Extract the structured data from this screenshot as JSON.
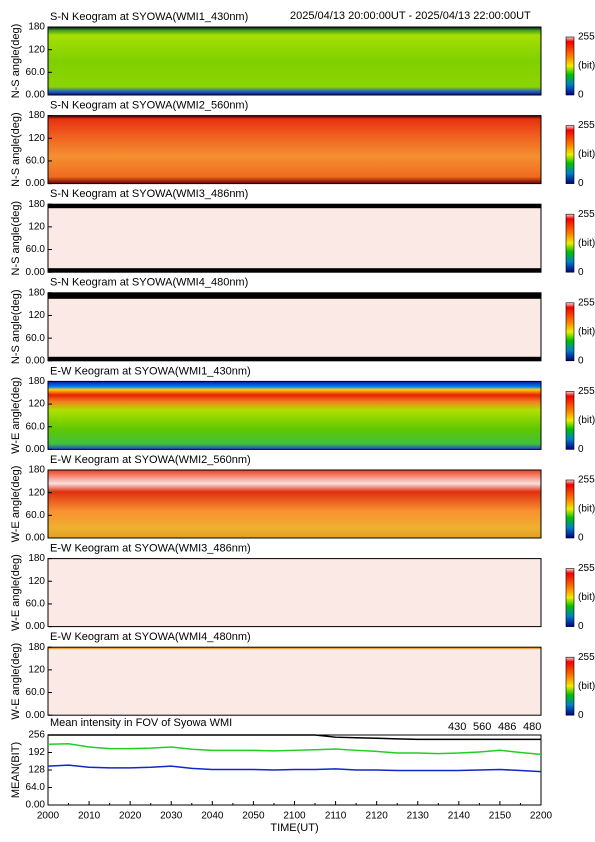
{
  "header": {
    "time_range": "2025/04/13 20:00:00UT - 2025/04/13 22:00:00UT"
  },
  "keograms": [
    {
      "title": "S-N Keogram at SYOWA(WMI1_430nm)",
      "ylabel": "N-S angle(deg)",
      "ylim": [
        0,
        180
      ],
      "yticks": [
        {
          "value": 0,
          "label": "0.00"
        },
        {
          "value": 60,
          "label": "60.0"
        },
        120,
        180
      ],
      "colorbar": [
        "255",
        "(bit)",
        "0"
      ]
    },
    {
      "title": "S-N Keogram at SYOWA(WMI2_560nm)",
      "ylabel": "N-S angle(deg)",
      "ylim": [
        0,
        180
      ],
      "yticks": [
        {
          "value": 0,
          "label": "0.00"
        },
        {
          "value": 60,
          "label": "60.0"
        },
        120,
        180
      ],
      "colorbar": [
        "255",
        "(bit)",
        "0"
      ]
    },
    {
      "title": "S-N Keogram at SYOWA(WMI3_486nm)",
      "ylabel": "N-S angle(deg)",
      "ylim": [
        0,
        180
      ],
      "yticks": [
        {
          "value": 0,
          "label": "0.00"
        },
        {
          "value": 60,
          "label": "60.0"
        },
        120,
        180
      ],
      "colorbar": [
        "255",
        "(bit)",
        "0"
      ]
    },
    {
      "title": "S-N Keogram at SYOWA(WMI4_480nm)",
      "ylabel": "N-S angle(deg)",
      "ylim": [
        0,
        180
      ],
      "yticks": [
        {
          "value": 0,
          "label": "0.00"
        },
        {
          "value": 60,
          "label": "60.0"
        },
        120,
        180
      ],
      "colorbar": [
        "255",
        "(bit)",
        "0"
      ]
    },
    {
      "title": "E-W Keogram at SYOWA(WMI1_430nm)",
      "ylabel": "W-E angle(deg)",
      "ylim": [
        0,
        180
      ],
      "yticks": [
        {
          "value": 0,
          "label": "0.00"
        },
        {
          "value": 60,
          "label": "60.0"
        },
        120,
        180
      ],
      "colorbar": [
        "255",
        "(bit)",
        "0"
      ]
    },
    {
      "title": "E-W Keogram at SYOWA(WMI2_560nm)",
      "ylabel": "W-E angle(deg)",
      "ylim": [
        0,
        180
      ],
      "yticks": [
        {
          "value": 0,
          "label": "0.00"
        },
        {
          "value": 60,
          "label": "60.0"
        },
        120,
        180
      ],
      "colorbar": [
        "255",
        "(bit)",
        "0"
      ]
    },
    {
      "title": "E-W Keogram at SYOWA(WMI3_486nm)",
      "ylabel": "W-E angle(deg)",
      "ylim": [
        0,
        180
      ],
      "yticks": [
        {
          "value": 0,
          "label": "0.00"
        },
        {
          "value": 60,
          "label": "60.0"
        },
        120,
        180
      ],
      "colorbar": [
        "255",
        "(bit)",
        "0"
      ]
    },
    {
      "title": "E-W Keogram at SYOWA(WMI4_480nm)",
      "ylabel": "W-E angle(deg)",
      "ylim": [
        0,
        180
      ],
      "yticks": [
        {
          "value": 0,
          "label": "0.00"
        },
        {
          "value": 60,
          "label": "60.0"
        },
        120,
        180
      ],
      "colorbar": [
        "255",
        "(bit)",
        "0"
      ]
    }
  ],
  "chart_data": {
    "type": "line",
    "title": "Mean intensity in FOV of Syowa WMI",
    "xlabel": "TIME(UT)",
    "ylabel": "MEAN(BIT)",
    "categories": [
      "2000",
      null,
      "2010",
      null,
      "2020",
      null,
      "2030",
      null,
      "2040",
      null,
      "2050",
      null,
      "2100",
      null,
      "2110",
      null,
      "2120",
      null,
      "2130",
      null,
      "2140",
      null,
      "2150",
      null,
      "2200"
    ],
    "ylim": [
      0,
      256
    ],
    "yticks": [
      {
        "value": 0,
        "label": "0.00"
      },
      {
        "value": 64,
        "label": "64.0"
      },
      128,
      192,
      256
    ],
    "series": [
      {
        "name": "430",
        "color": "#1028c8",
        "values": [
          142,
          146,
          138,
          136,
          136,
          138,
          142,
          134,
          130,
          130,
          130,
          128,
          130,
          130,
          132,
          128,
          128,
          126,
          126,
          126,
          126,
          128,
          130,
          126,
          122
        ]
      },
      {
        "name": "560",
        "color": "#20d020",
        "values": [
          222,
          224,
          212,
          206,
          206,
          208,
          212,
          204,
          200,
          200,
          200,
          198,
          200,
          202,
          205,
          200,
          196,
          190,
          190,
          188,
          190,
          194,
          200,
          192,
          185
        ]
      },
      {
        "name": "486",
        "color": "#e02020",
        "values": [
          null,
          null,
          null,
          null,
          null,
          null,
          null,
          null,
          null,
          null,
          null,
          null,
          null,
          null,
          null,
          null,
          null,
          null,
          null,
          null,
          null,
          null,
          null,
          null,
          null
        ]
      },
      {
        "name": "480",
        "color": "#000000",
        "values": [
          256,
          256,
          256,
          256,
          256,
          256,
          256,
          256,
          256,
          256,
          256,
          256,
          256,
          256,
          248,
          246,
          244,
          242,
          240,
          240,
          240,
          240,
          240,
          240,
          240
        ]
      }
    ]
  }
}
